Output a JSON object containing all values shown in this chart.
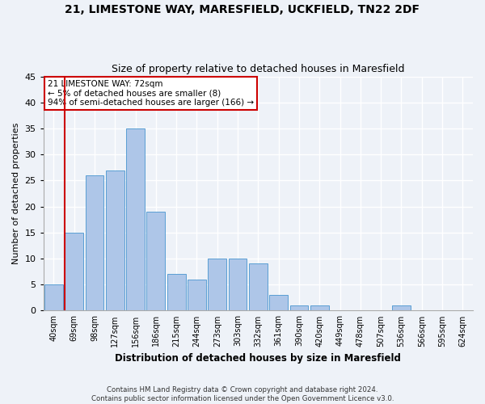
{
  "title": "21, LIMESTONE WAY, MARESFIELD, UCKFIELD, TN22 2DF",
  "subtitle": "Size of property relative to detached houses in Maresfield",
  "xlabel": "Distribution of detached houses by size in Maresfield",
  "ylabel": "Number of detached properties",
  "bar_color": "#aec6e8",
  "bar_edge_color": "#5a9fd4",
  "categories": [
    "40sqm",
    "69sqm",
    "98sqm",
    "127sqm",
    "156sqm",
    "186sqm",
    "215sqm",
    "244sqm",
    "273sqm",
    "303sqm",
    "332sqm",
    "361sqm",
    "390sqm",
    "420sqm",
    "449sqm",
    "478sqm",
    "507sqm",
    "536sqm",
    "566sqm",
    "595sqm",
    "624sqm"
  ],
  "values": [
    5,
    15,
    26,
    27,
    35,
    19,
    7,
    6,
    10,
    10,
    9,
    3,
    1,
    1,
    0,
    0,
    0,
    1,
    0,
    0,
    0
  ],
  "ylim": [
    0,
    45
  ],
  "yticks": [
    0,
    5,
    10,
    15,
    20,
    25,
    30,
    35,
    40,
    45
  ],
  "annotation_box_text": "21 LIMESTONE WAY: 72sqm\n← 5% of detached houses are smaller (8)\n94% of semi-detached houses are larger (166) →",
  "annotation_box_color": "#ffffff",
  "annotation_box_edge_color": "#cc0000",
  "vline_color": "#cc0000",
  "footer_line1": "Contains HM Land Registry data © Crown copyright and database right 2024.",
  "footer_line2": "Contains public sector information licensed under the Open Government Licence v3.0.",
  "background_color": "#eef2f8",
  "grid_color": "#ffffff"
}
